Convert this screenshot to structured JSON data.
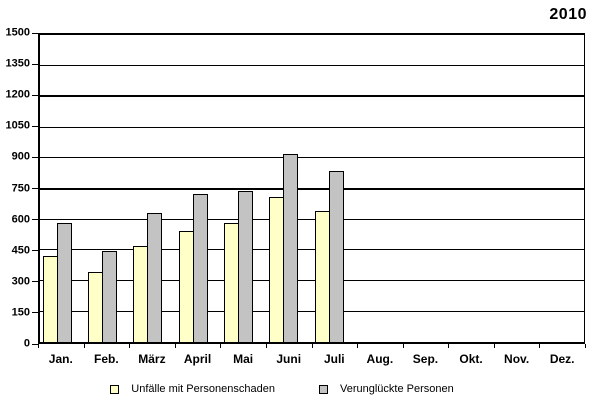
{
  "title": "2010",
  "chart_data": {
    "type": "bar",
    "title": "2010",
    "categories": [
      "Jan.",
      "Feb.",
      "März",
      "April",
      "Mai",
      "Juni",
      "Juli",
      "Aug.",
      "Sep.",
      "Okt.",
      "Nov.",
      "Dez."
    ],
    "series": [
      {
        "name": "Unfälle mit Personenschaden",
        "color": "#FFFFC8",
        "values": [
          420,
          340,
          470,
          540,
          580,
          710,
          640,
          null,
          null,
          null,
          null,
          null
        ]
      },
      {
        "name": "Verunglückte Personen",
        "color": "#C3C3C3",
        "values": [
          580,
          445,
          630,
          725,
          740,
          920,
          835,
          null,
          null,
          null,
          null,
          null
        ]
      }
    ],
    "xlabel": "",
    "ylabel": "",
    "ylim": [
      0,
      1500
    ],
    "yticks": [
      1500,
      1350,
      1200,
      1050,
      900,
      750,
      600,
      450,
      300,
      150,
      0
    ],
    "thick_gridlines": [
      1200,
      750
    ],
    "grid": "horizontal",
    "legend_position": "bottom",
    "bar_border_color": "#000000",
    "axis_color": "#000000"
  }
}
